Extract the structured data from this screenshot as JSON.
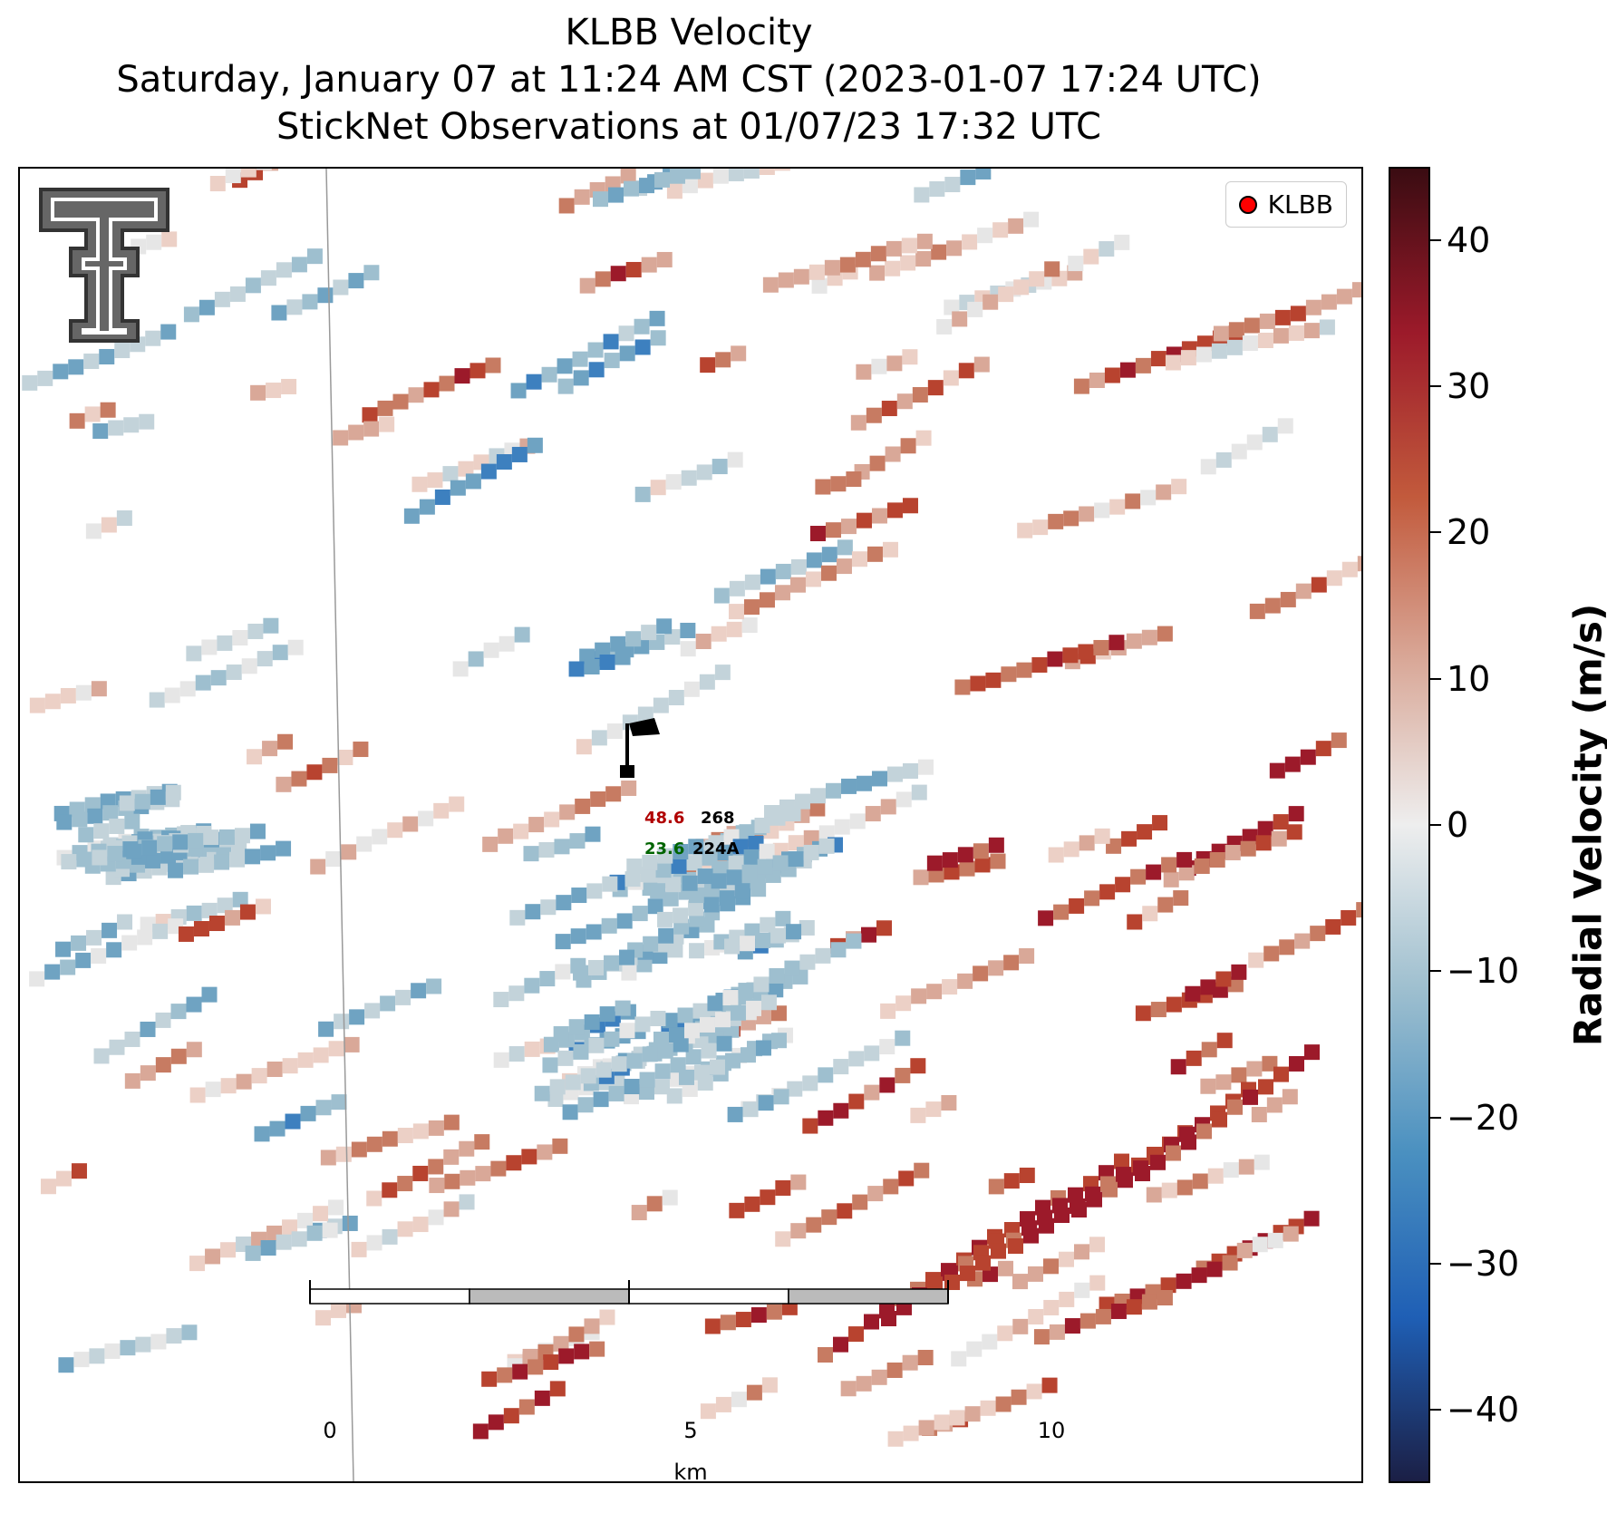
{
  "title": {
    "line1": "KLBB Velocity",
    "line2": "Saturday, January 07 at 11:24 AM CST (2023-01-07 17:24 UTC)",
    "line3": "StickNet Observations at 01/07/23 17:32 UTC"
  },
  "legend": {
    "label": "KLBB",
    "marker_color": "#ff0000"
  },
  "colorbar": {
    "title": "Radial Velocity (m/s)",
    "min": -45,
    "max": 45,
    "ticks": [
      "40",
      "30",
      "20",
      "10",
      "0",
      "−10",
      "−20",
      "−30",
      "−40"
    ],
    "tick_values": [
      40,
      30,
      20,
      10,
      0,
      -10,
      -20,
      -30,
      -40
    ],
    "colors": [
      "#1b1f45",
      "#1f5fb5",
      "#4a90c0",
      "#9ebfcf",
      "#eeeeee",
      "#d9a898",
      "#c25a3c",
      "#9c1a2a",
      "#3a0c12"
    ]
  },
  "stations": [
    {
      "id": "268",
      "value": "48.6",
      "value_color": "#b00000"
    },
    {
      "id": "224A",
      "value": "23.6",
      "value_color": "#006400"
    }
  ],
  "scale_bar": {
    "labels": [
      "0",
      "5",
      "10"
    ],
    "unit": "km"
  },
  "logo": {
    "name": "texas-tech-double-t-logo"
  }
}
